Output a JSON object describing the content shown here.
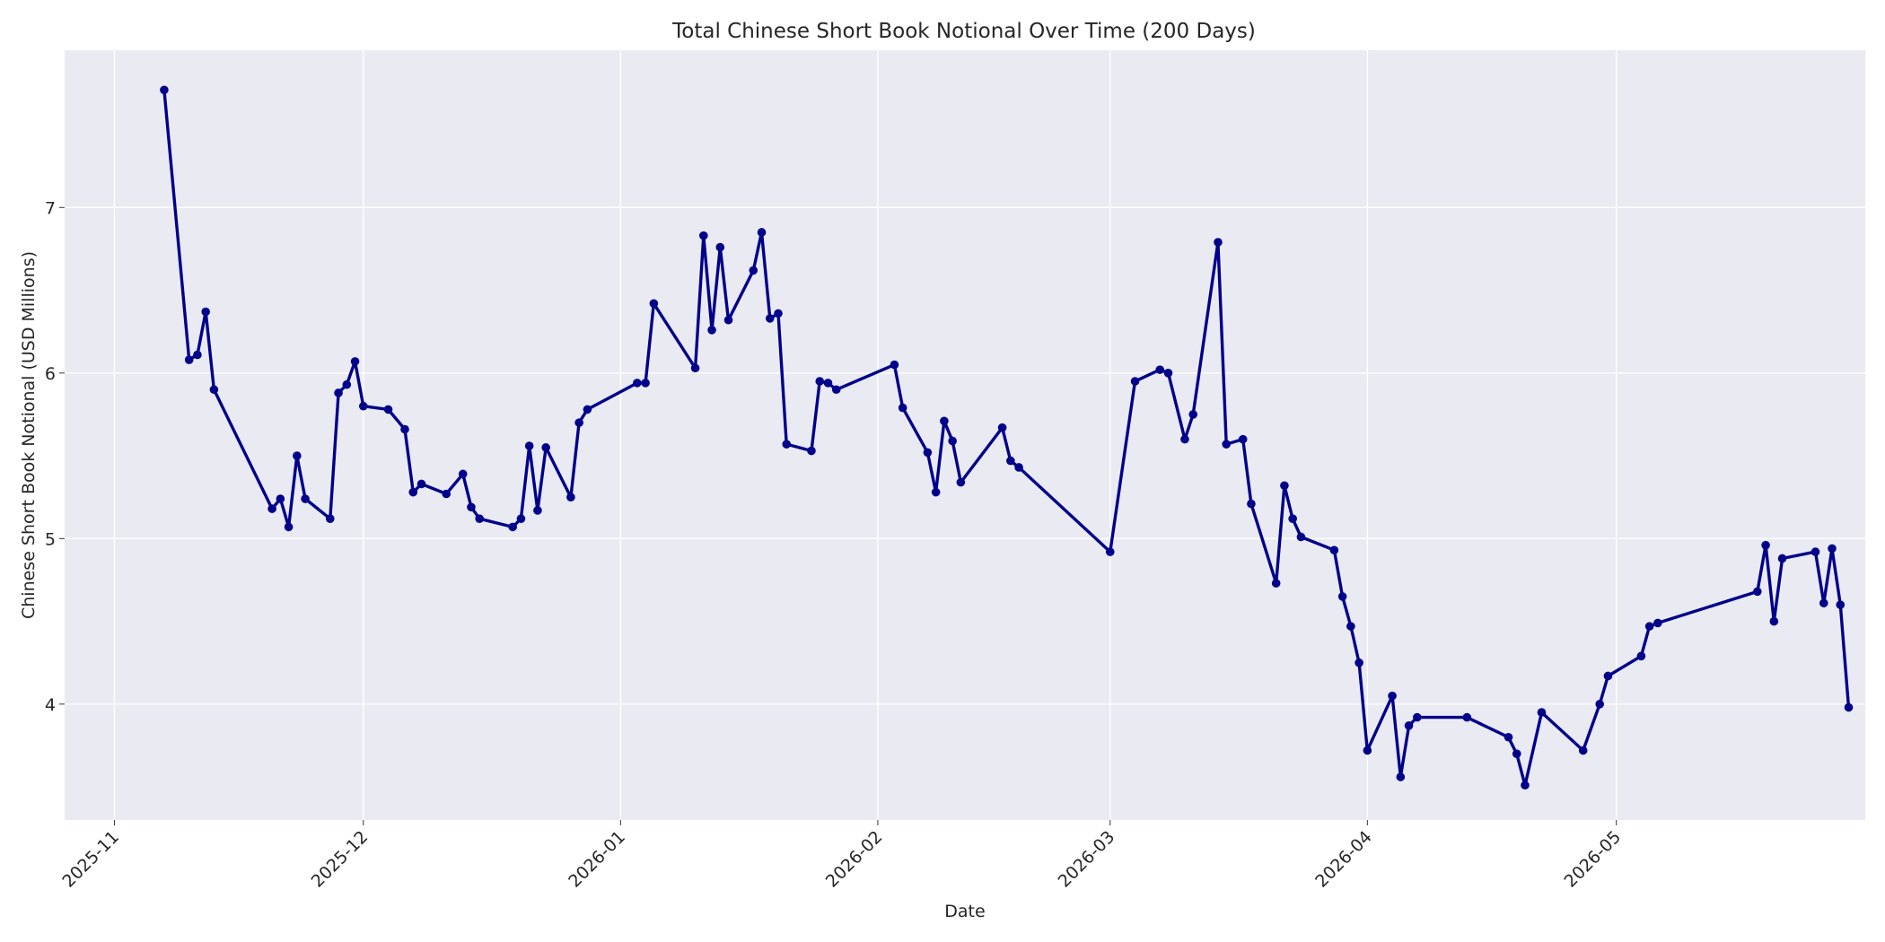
{
  "chart_data": {
    "type": "line",
    "title": "Total Chinese Short Book Notional Over Time (200 Days)",
    "xlabel": "Date",
    "ylabel": "Chinese Short Book Notional (USD Millions)",
    "x_tick_labels": [
      "2025-11",
      "2025-12",
      "2026-01",
      "2026-02",
      "2026-03",
      "2026-04",
      "2026-05"
    ],
    "y_ticks": [
      4,
      5,
      6,
      7
    ],
    "ylim": [
      3.3,
      7.95
    ],
    "xlim": [
      "2025-10-26",
      "2026-05-31"
    ],
    "grid": true,
    "line_color": "#00008b",
    "plot_background": "#eaeaf2",
    "series": [
      {
        "points": [
          [
            "2025-11-07",
            7.71
          ],
          [
            "2025-11-10",
            6.08
          ],
          [
            "2025-11-11",
            6.11
          ],
          [
            "2025-11-12",
            6.37
          ],
          [
            "2025-11-13",
            5.9
          ],
          [
            "2025-11-20",
            5.18
          ],
          [
            "2025-11-21",
            5.24
          ],
          [
            "2025-11-22",
            5.07
          ],
          [
            "2025-11-23",
            5.5
          ],
          [
            "2025-11-24",
            5.24
          ],
          [
            "2025-11-27",
            5.12
          ],
          [
            "2025-11-28",
            5.88
          ],
          [
            "2025-11-29",
            5.93
          ],
          [
            "2025-11-30",
            6.07
          ],
          [
            "2025-12-01",
            5.8
          ],
          [
            "2025-12-04",
            5.78
          ],
          [
            "2025-12-06",
            5.66
          ],
          [
            "2025-12-07",
            5.28
          ],
          [
            "2025-12-08",
            5.33
          ],
          [
            "2025-12-11",
            5.27
          ],
          [
            "2025-12-13",
            5.39
          ],
          [
            "2025-12-14",
            5.19
          ],
          [
            "2025-12-15",
            5.12
          ],
          [
            "2025-12-19",
            5.07
          ],
          [
            "2025-12-20",
            5.12
          ],
          [
            "2025-12-21",
            5.56
          ],
          [
            "2025-12-22",
            5.17
          ],
          [
            "2025-12-23",
            5.55
          ],
          [
            "2025-12-26",
            5.25
          ],
          [
            "2025-12-27",
            5.7
          ],
          [
            "2025-12-28",
            5.78
          ],
          [
            "2026-01-03",
            5.94
          ],
          [
            "2026-01-04",
            5.94
          ],
          [
            "2026-01-05",
            6.42
          ],
          [
            "2026-01-10",
            6.03
          ],
          [
            "2026-01-11",
            6.83
          ],
          [
            "2026-01-12",
            6.26
          ],
          [
            "2026-01-13",
            6.76
          ],
          [
            "2026-01-14",
            6.32
          ],
          [
            "2026-01-17",
            6.62
          ],
          [
            "2026-01-18",
            6.85
          ],
          [
            "2026-01-19",
            6.33
          ],
          [
            "2026-01-20",
            6.36
          ],
          [
            "2026-01-21",
            5.57
          ],
          [
            "2026-01-24",
            5.53
          ],
          [
            "2026-01-25",
            5.95
          ],
          [
            "2026-01-26",
            5.94
          ],
          [
            "2026-01-27",
            5.9
          ],
          [
            "2026-02-03",
            6.05
          ],
          [
            "2026-02-04",
            5.79
          ],
          [
            "2026-02-07",
            5.52
          ],
          [
            "2026-02-08",
            5.28
          ],
          [
            "2026-02-09",
            5.71
          ],
          [
            "2026-02-10",
            5.59
          ],
          [
            "2026-02-11",
            5.34
          ],
          [
            "2026-02-16",
            5.67
          ],
          [
            "2026-02-17",
            5.47
          ],
          [
            "2026-02-18",
            5.43
          ],
          [
            "2026-03-01",
            4.92
          ],
          [
            "2026-03-04",
            5.95
          ],
          [
            "2026-03-07",
            6.02
          ],
          [
            "2026-03-08",
            6.0
          ],
          [
            "2026-03-10",
            5.6
          ],
          [
            "2026-03-11",
            5.75
          ],
          [
            "2026-03-14",
            6.79
          ],
          [
            "2026-03-15",
            5.57
          ],
          [
            "2026-03-17",
            5.6
          ],
          [
            "2026-03-18",
            5.21
          ],
          [
            "2026-03-21",
            4.73
          ],
          [
            "2026-03-22",
            5.32
          ],
          [
            "2026-03-23",
            5.12
          ],
          [
            "2026-03-24",
            5.01
          ],
          [
            "2026-03-28",
            4.93
          ],
          [
            "2026-03-29",
            4.65
          ],
          [
            "2026-03-30",
            4.47
          ],
          [
            "2026-03-31",
            4.25
          ],
          [
            "2026-04-01",
            3.72
          ],
          [
            "2026-04-04",
            4.05
          ],
          [
            "2026-04-05",
            3.56
          ],
          [
            "2026-04-06",
            3.87
          ],
          [
            "2026-04-07",
            3.92
          ],
          [
            "2026-04-13",
            3.92
          ],
          [
            "2026-04-18",
            3.8
          ],
          [
            "2026-04-19",
            3.7
          ],
          [
            "2026-04-20",
            3.51
          ],
          [
            "2026-04-22",
            3.95
          ],
          [
            "2026-04-27",
            3.72
          ],
          [
            "2026-04-29",
            4.0
          ],
          [
            "2026-04-30",
            4.17
          ],
          [
            "2026-05-04",
            4.29
          ],
          [
            "2026-05-05",
            4.47
          ],
          [
            "2026-05-06",
            4.49
          ],
          [
            "2026-05-18",
            4.68
          ],
          [
            "2026-05-19",
            4.96
          ],
          [
            "2026-05-20",
            4.5
          ],
          [
            "2026-05-21",
            4.88
          ],
          [
            "2026-05-25",
            4.92
          ],
          [
            "2026-05-26",
            4.61
          ],
          [
            "2026-05-27",
            4.94
          ],
          [
            "2026-05-28",
            4.6
          ],
          [
            "2026-05-29",
            3.98
          ]
        ]
      }
    ]
  }
}
